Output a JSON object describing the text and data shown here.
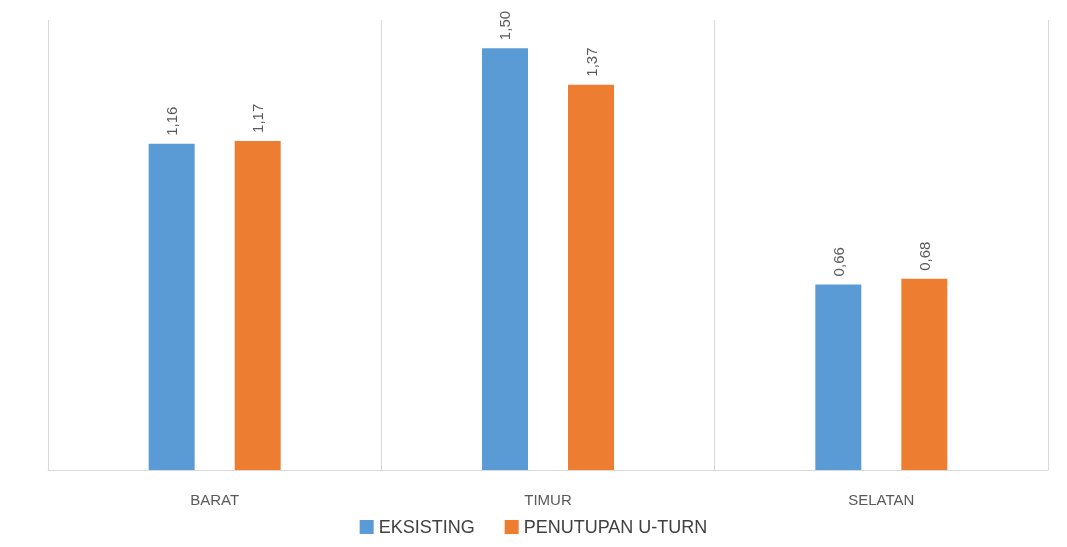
{
  "chart_data": {
    "type": "bar",
    "categories": [
      "BARAT",
      "TIMUR",
      "SELATAN"
    ],
    "series": [
      {
        "name": "EKSISTING",
        "color": "#5b9bd5",
        "values": [
          1.16,
          1.5,
          0.66
        ],
        "value_labels": [
          "1,16",
          "1,50",
          "0,66"
        ]
      },
      {
        "name": "PENUTUPAN U-TURN",
        "color": "#ed7d31",
        "values": [
          1.17,
          1.37,
          0.68
        ],
        "value_labels": [
          "1,17",
          "1,37",
          "0,68"
        ]
      }
    ],
    "grid": "x",
    "legend": "bottom"
  }
}
